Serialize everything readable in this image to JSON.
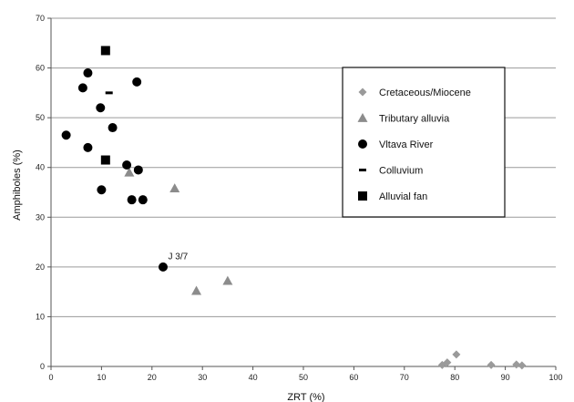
{
  "chart_data": {
    "type": "scatter",
    "xlabel": "ZRT (%)",
    "ylabel": "Amphiboles (%)",
    "xlim": [
      0,
      100
    ],
    "ylim": [
      0,
      70
    ],
    "xticks": [
      "0",
      "10",
      "20",
      "30",
      "40",
      "50",
      "60",
      "70",
      "80",
      "90",
      "100"
    ],
    "yticks": [
      "0",
      "10",
      "20",
      "30",
      "40",
      "50",
      "60",
      "70"
    ],
    "grid": "horizontal",
    "legend_position": "right",
    "series": [
      {
        "name": "Cretaceous/Miocene",
        "marker": "diamond",
        "color": "#9a9a9a",
        "points": [
          [
            77.5,
            0.3
          ],
          [
            78.5,
            0.8
          ],
          [
            80.3,
            2.4
          ],
          [
            87.2,
            0.3
          ],
          [
            92.2,
            0.4
          ],
          [
            93.3,
            0.2
          ]
        ]
      },
      {
        "name": "Tributary alluvia",
        "marker": "triangle",
        "color": "#8c8c8c",
        "points": [
          [
            24.5,
            35.8
          ],
          [
            15.5,
            39.0
          ],
          [
            28.8,
            15.2
          ],
          [
            35.0,
            17.2
          ]
        ]
      },
      {
        "name": "Vltava River",
        "marker": "circle",
        "color": "#000000",
        "points": [
          [
            3.0,
            46.5
          ],
          [
            6.3,
            56.0
          ],
          [
            7.3,
            59.0
          ],
          [
            7.3,
            44.0
          ],
          [
            9.8,
            52.0
          ],
          [
            10.0,
            35.5
          ],
          [
            12.2,
            48.0
          ],
          [
            15.0,
            40.5
          ],
          [
            16.0,
            33.5
          ],
          [
            17.0,
            57.2
          ],
          [
            17.3,
            39.5
          ],
          [
            18.2,
            33.5
          ],
          [
            22.2,
            20.0
          ]
        ]
      },
      {
        "name": "Colluvium",
        "marker": "dash",
        "color": "#000000",
        "points": [
          [
            11.5,
            55.0
          ]
        ]
      },
      {
        "name": "Alluvial fan",
        "marker": "square",
        "color": "#000000",
        "points": [
          [
            10.8,
            63.5
          ],
          [
            10.8,
            41.5
          ]
        ]
      }
    ],
    "annotations": [
      {
        "text": "J 3/7",
        "x": 23.2,
        "y": 21.5
      }
    ]
  }
}
